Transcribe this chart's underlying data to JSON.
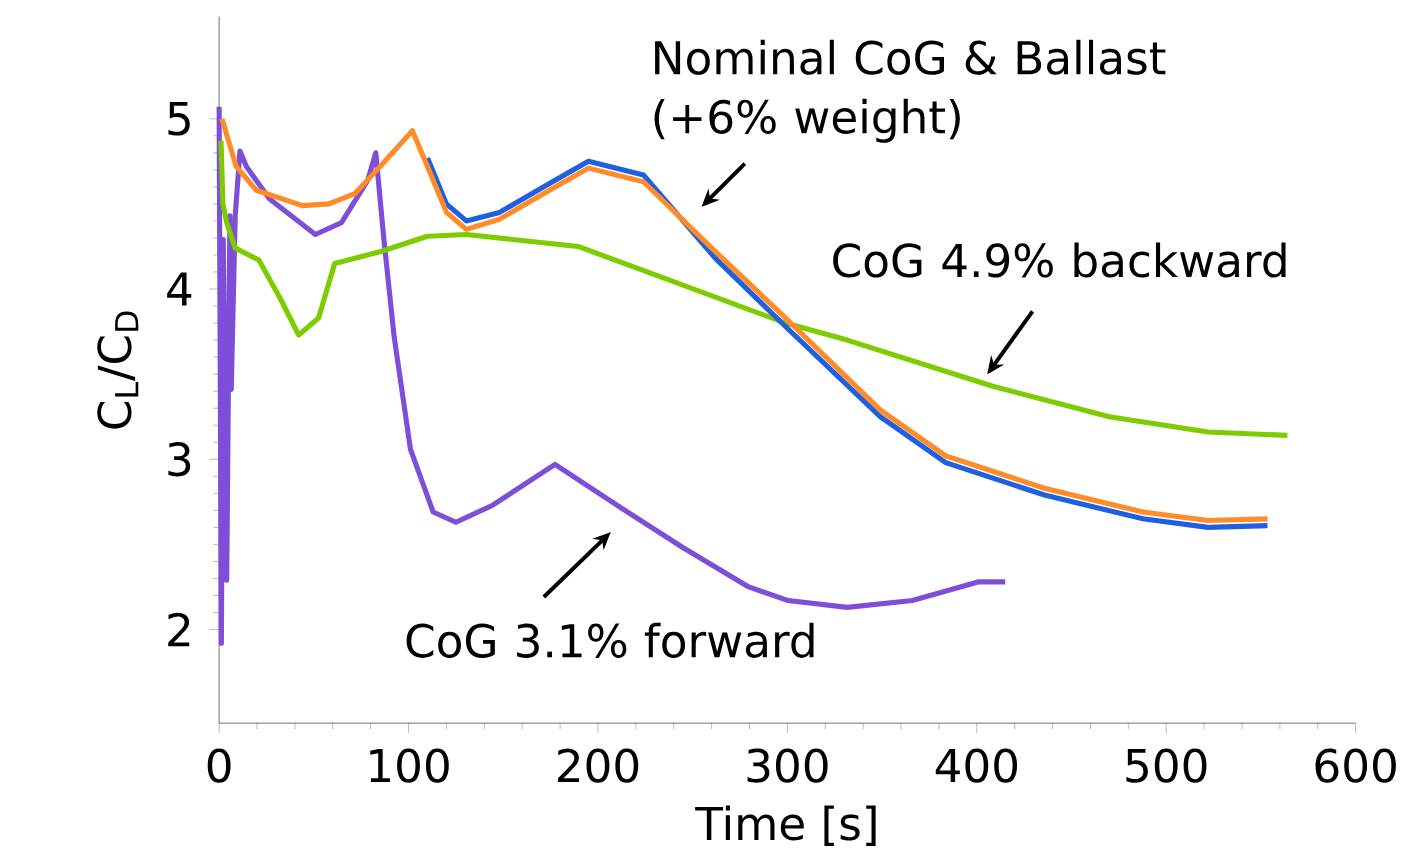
{
  "chart_data": {
    "type": "line",
    "xlabel": "Time [s]",
    "ylabel": "C$_{L}$/C$_{D}$",
    "xlim": [
      0,
      600
    ],
    "ylim": [
      1.45,
      5.6
    ],
    "xticks": [
      0,
      100,
      200,
      300,
      400,
      500,
      600
    ],
    "yticks": [
      2,
      3,
      4,
      5
    ],
    "series": [
      {
        "color": "#7d4fd8",
        "x": [
          0,
          1.2,
          2.2,
          4,
          5.7,
          6.4,
          8.5,
          11,
          14.4,
          26.5,
          50.8,
          64.6,
          78.5,
          82.7,
          87,
          92.4,
          101,
          113,
          125,
          144.4,
          177.3,
          210,
          245,
          279.6,
          300.4,
          331.6,
          366,
          401,
          415
        ],
        "values": [
          5.07,
          1.92,
          4.29,
          2.29,
          4.43,
          3.41,
          4.43,
          4.81,
          4.72,
          4.53,
          4.32,
          4.39,
          4.64,
          4.8,
          4.29,
          3.72,
          3.06,
          2.69,
          2.63,
          2.73,
          2.97,
          2.73,
          2.48,
          2.25,
          2.17,
          2.13,
          2.17,
          2.28,
          2.28
        ]
      },
      {
        "color": "#7ccc00",
        "x": [
          1,
          2,
          4,
          8.5,
          21,
          32,
          42,
          52.5,
          61,
          85.4,
          110,
          130.5,
          189.5,
          231,
          299,
          331.6,
          408,
          470,
          522,
          564
        ],
        "values": [
          4.87,
          4.5,
          4.39,
          4.24,
          4.17,
          3.95,
          3.73,
          3.83,
          4.15,
          4.22,
          4.31,
          4.32,
          4.25,
          4.08,
          3.8,
          3.7,
          3.43,
          3.25,
          3.16,
          3.14
        ]
      },
      {
        "color": "#2060e0",
        "x": [
          110,
          120,
          130.5,
          148,
          176,
          195,
          224,
          262,
          299,
          349,
          383.6,
          435.7,
          487.7,
          522,
          553.5
        ],
        "values": [
          4.77,
          4.5,
          4.4,
          4.45,
          4.63,
          4.75,
          4.67,
          4.18,
          3.78,
          3.25,
          2.98,
          2.79,
          2.65,
          2.6,
          2.61
        ]
      },
      {
        "color": "#ff8c28",
        "x": [
          1.5,
          9,
          19.6,
          44,
          58,
          71.6,
          85,
          102,
          110,
          120,
          130.5,
          148,
          176,
          195,
          224,
          262,
          299,
          349,
          383.6,
          435.7,
          487.7,
          522,
          553.5
        ],
        "values": [
          5.0,
          4.72,
          4.58,
          4.49,
          4.5,
          4.56,
          4.72,
          4.93,
          4.72,
          4.45,
          4.35,
          4.41,
          4.59,
          4.71,
          4.63,
          4.22,
          3.83,
          3.29,
          3.02,
          2.83,
          2.69,
          2.64,
          2.65
        ]
      }
    ],
    "annotations": [
      "Nominal CoG & Ballast (+6% weight)",
      "CoG 4.9% backward",
      "CoG 3.1% forward"
    ]
  }
}
